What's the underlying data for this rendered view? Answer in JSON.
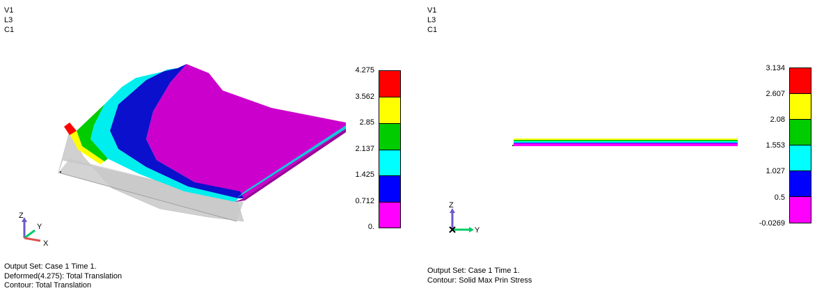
{
  "left_view": {
    "ids": [
      "V1",
      "L3",
      "C1"
    ],
    "legend": {
      "labels": [
        "4.275",
        "3.562",
        "2.85",
        "2.137",
        "1.425",
        "0.712",
        "0."
      ],
      "colors": [
        "#ff0000",
        "#ffff00",
        "#00cc00",
        "#00ffff",
        "#0000ff",
        "#ff00ff"
      ]
    },
    "axes": {
      "z": "Z",
      "y": "Y",
      "x": "X"
    },
    "info": [
      "Output Set: Case 1 Time 1.",
      "Deformed(4.275): Total Translation",
      "Contour: Total Translation"
    ]
  },
  "right_view": {
    "ids": [
      "V1",
      "L3",
      "C1"
    ],
    "legend": {
      "labels": [
        "3.134",
        "2.607",
        "2.08",
        "1.553",
        "1.027",
        "0.5",
        "-0.0269"
      ],
      "colors": [
        "#ff0000",
        "#ffff00",
        "#00cc00",
        "#00ffff",
        "#0000ff",
        "#ff00ff"
      ]
    },
    "axes": {
      "z": "Z",
      "y": "Y"
    },
    "info": [
      "Output Set: Case 1 Time 1.",
      "Contour: Solid Max Prin Stress"
    ]
  }
}
